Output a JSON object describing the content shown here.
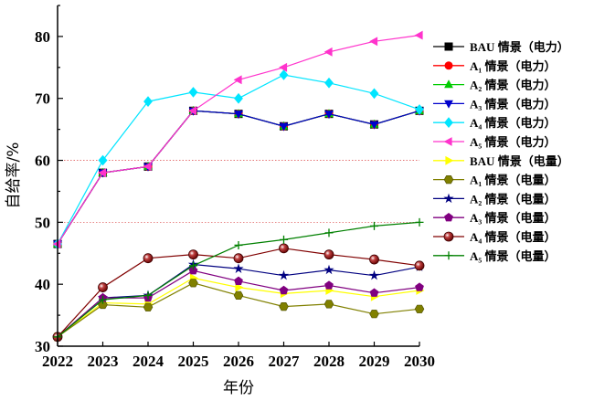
{
  "chart_data": {
    "type": "line",
    "xlabel": "年份",
    "ylabel": "自给率/%",
    "x": [
      2022,
      2023,
      2024,
      2025,
      2026,
      2027,
      2028,
      2029,
      2030
    ],
    "xlim": [
      2022,
      2030
    ],
    "ylim": [
      30,
      85
    ],
    "yticks": [
      30,
      40,
      50,
      60,
      70,
      80
    ],
    "reference_lines": [
      {
        "y": 60,
        "color": "#e06060",
        "style": "dotted"
      },
      {
        "y": 50,
        "color": "#e06060",
        "style": "dotted"
      }
    ],
    "legend_position": "right",
    "series": [
      {
        "name": "BAU 情景（电力）",
        "color": "#000000",
        "marker": "square",
        "values": [
          46.5,
          58,
          59,
          68,
          67.5,
          65.5,
          67.5,
          65.8,
          68
        ]
      },
      {
        "name": "A₁ 情景（电力）",
        "color": "#ff0000",
        "marker": "circle",
        "values": [
          46.5,
          58,
          59,
          68,
          67.5,
          65.5,
          67.5,
          65.8,
          68
        ]
      },
      {
        "name": "A₂ 情景（电力）",
        "color": "#00cc00",
        "marker": "triangle-up",
        "values": [
          46.5,
          58,
          59,
          68,
          67.5,
          65.5,
          67.5,
          65.8,
          68
        ]
      },
      {
        "name": "A₃ 情景（电力）",
        "color": "#0000cc",
        "marker": "triangle-down",
        "values": [
          46.5,
          58,
          59,
          68,
          67.5,
          65.5,
          67.5,
          65.8,
          68
        ]
      },
      {
        "name": "A₄ 情景（电力）",
        "color": "#00e5ff",
        "marker": "diamond",
        "values": [
          46.5,
          60,
          69.5,
          71,
          70,
          73.8,
          72.5,
          70.8,
          68.2
        ]
      },
      {
        "name": "A₅ 情景（电力）",
        "color": "#ff33cc",
        "marker": "triangle-left",
        "values": [
          46.5,
          58,
          59,
          68,
          73,
          75,
          77.5,
          79.2,
          80.2
        ]
      },
      {
        "name": "BAU 情景（电量）",
        "color": "#ffff00",
        "marker": "triangle-right",
        "values": [
          31.5,
          37,
          36.8,
          41,
          39.5,
          38.5,
          39,
          38,
          39
        ]
      },
      {
        "name": "A₁ 情景（电量）",
        "color": "#808000",
        "marker": "hexagon",
        "values": [
          31.5,
          36.7,
          36.3,
          40.2,
          38.2,
          36.4,
          36.8,
          35.2,
          36
        ]
      },
      {
        "name": "A₂ 情景（电量）",
        "color": "#000080",
        "marker": "star",
        "values": [
          31.5,
          37.8,
          38.2,
          43.2,
          42.5,
          41.4,
          42.3,
          41.4,
          42.8
        ]
      },
      {
        "name": "A₃ 情景（电量）",
        "color": "#800080",
        "marker": "pentagon",
        "values": [
          31.5,
          37.8,
          37.8,
          42.2,
          40.5,
          39,
          39.8,
          38.6,
          39.5
        ]
      },
      {
        "name": "A₄ 情景（电量）",
        "color": "#800000",
        "marker": "sphere",
        "values": [
          31.5,
          39.5,
          44.2,
          44.8,
          44.2,
          45.8,
          44.8,
          44,
          43
        ]
      },
      {
        "name": "A₅ 情景（电量）",
        "color": "#008000",
        "marker": "plus",
        "values": [
          31.5,
          37.5,
          38.2,
          43,
          46.3,
          47.2,
          48.3,
          49.4,
          50
        ]
      }
    ]
  }
}
